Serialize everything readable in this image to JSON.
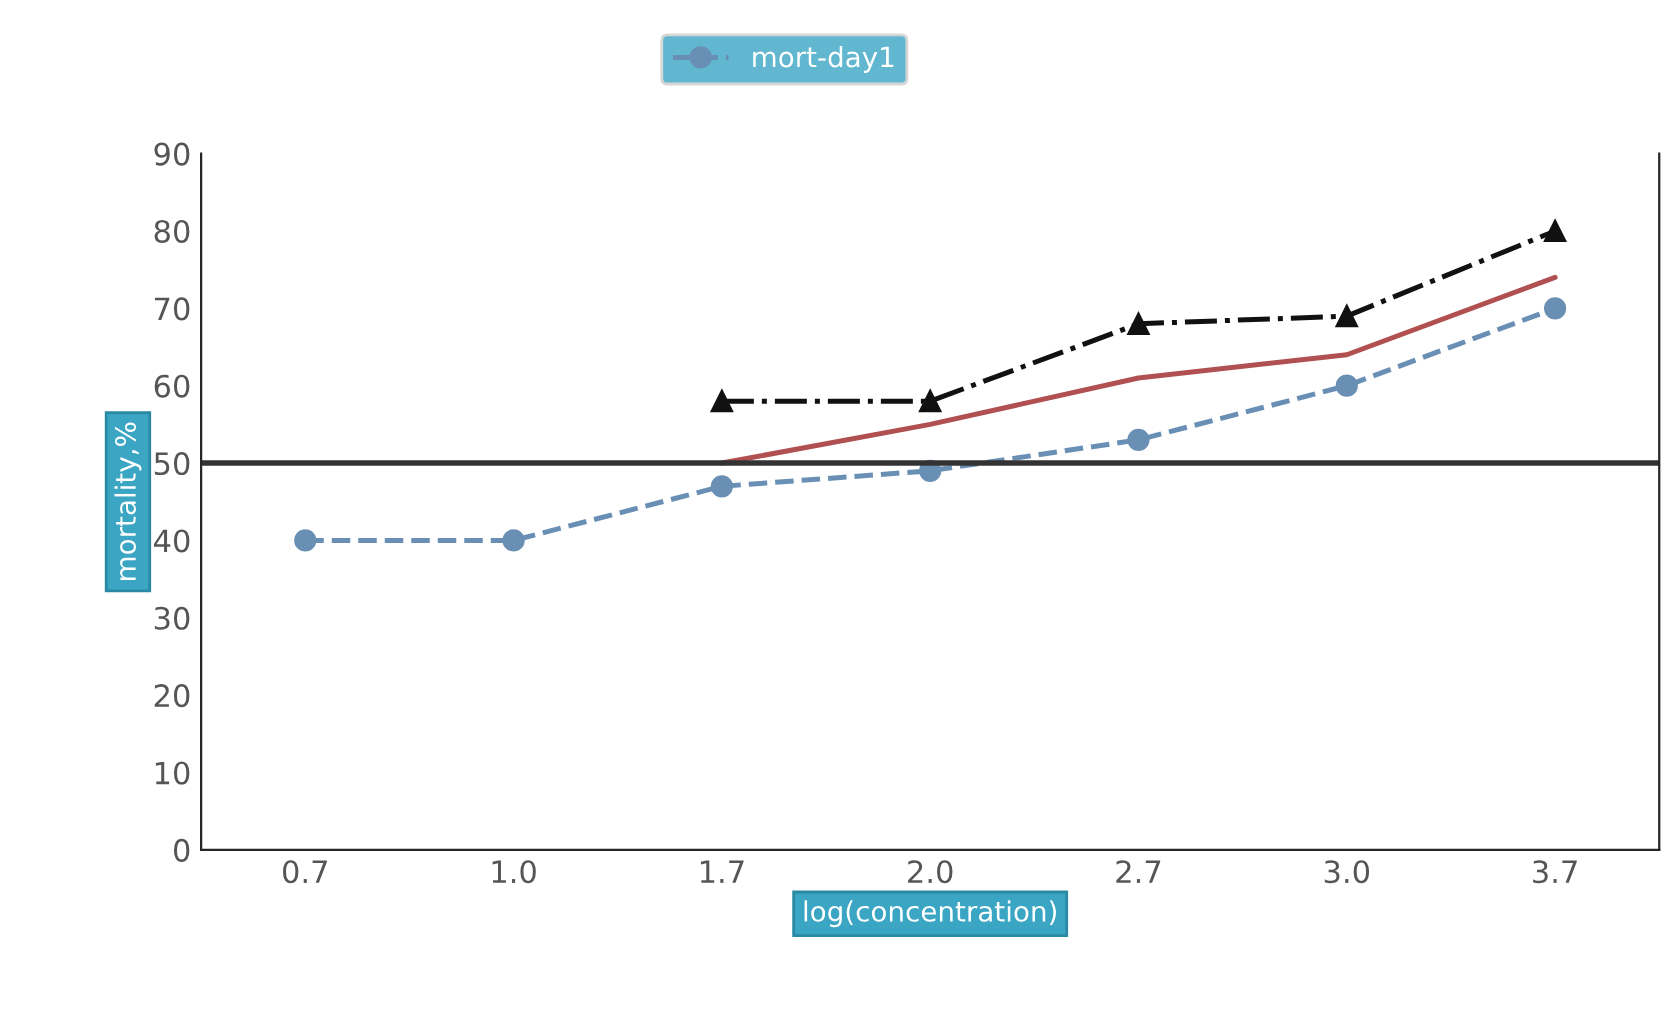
{
  "chart_data": {
    "type": "line",
    "xlabel": "log(concentration)",
    "ylabel": "mortality,%",
    "categories": [
      "0.7",
      "1.0",
      "1.7",
      "2.0",
      "2.7",
      "3.0",
      "3.7"
    ],
    "series": [
      {
        "color": "#111111",
        "values": [
          null,
          null,
          58,
          58,
          68,
          69,
          80
        ],
        "marker": "triangle",
        "line_style": "dashdot"
      },
      {
        "color": "#b05050",
        "values": [
          null,
          null,
          50,
          55,
          61,
          64,
          74
        ],
        "marker": "none",
        "line_style": "solid"
      },
      {
        "name": "mort-day1",
        "color": "#6a8fb5",
        "values": [
          40,
          40,
          47,
          49,
          53,
          60,
          70
        ],
        "marker": "circle",
        "line_style": "dashed"
      }
    ],
    "ref_lines": [
      {
        "axis": "y",
        "value": 50,
        "color": "#333333",
        "line_style": "solid"
      }
    ],
    "ylim": [
      0,
      90
    ],
    "yticks": [
      0,
      10,
      20,
      30,
      40,
      50,
      60,
      70,
      80,
      90
    ],
    "grid": false,
    "legend": "top"
  }
}
